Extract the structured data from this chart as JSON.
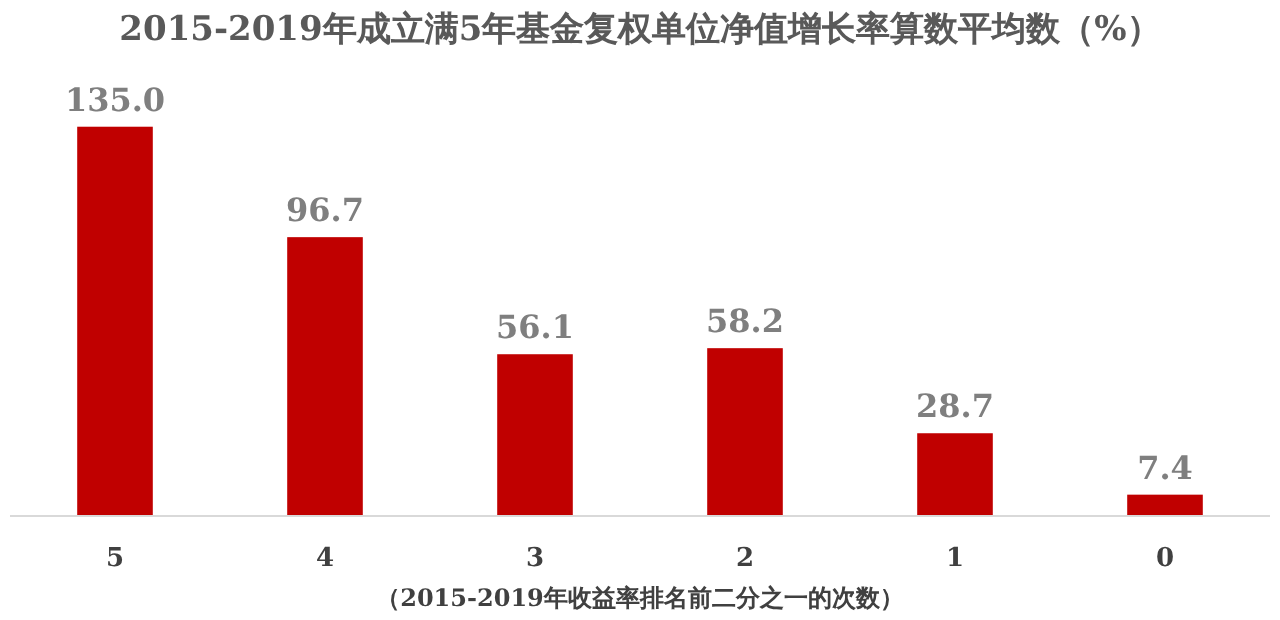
{
  "chart_data": {
    "type": "bar",
    "title": "2015-2019年成立满5年基金复权单位净值增长率算数平均数（%）",
    "xlabel": "（2015-2019年收益率排名前二分之一的次数）",
    "categories": [
      "5",
      "4",
      "3",
      "2",
      "1",
      "0"
    ],
    "values": [
      135.0,
      96.7,
      56.1,
      58.2,
      28.7,
      7.4
    ],
    "value_labels": [
      "135.0",
      "96.7",
      "56.1",
      "58.2",
      "28.7",
      "7.4"
    ],
    "color": "#c00000"
  }
}
